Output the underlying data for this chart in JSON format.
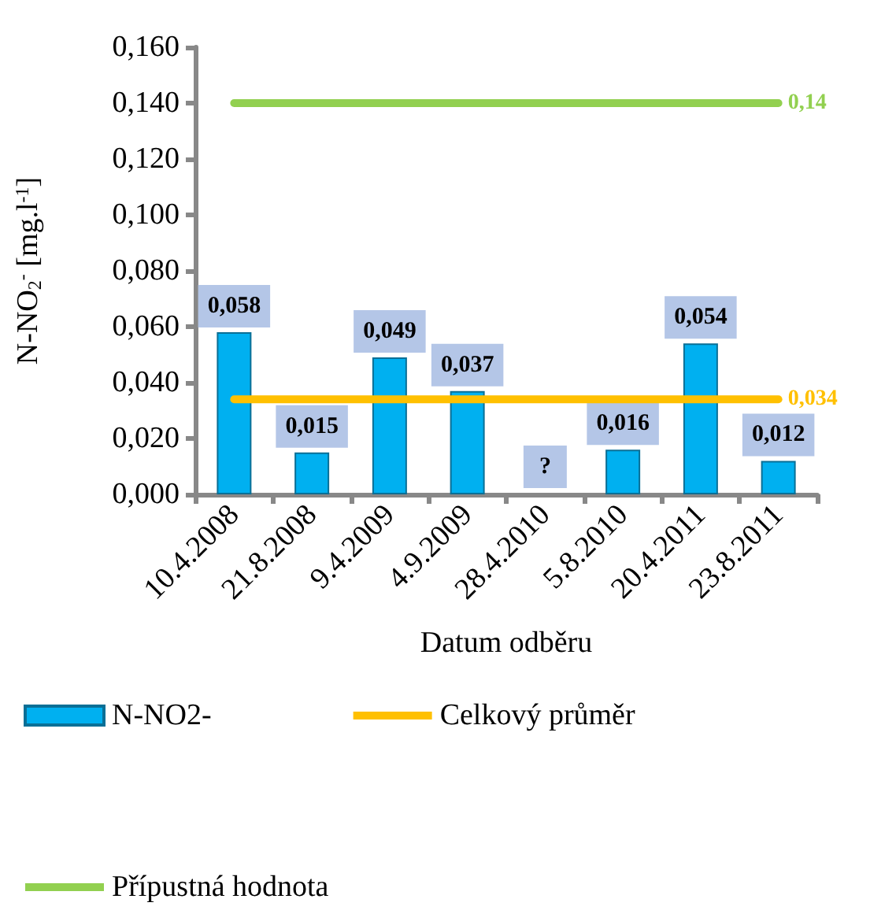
{
  "chart_data": {
    "type": "bar",
    "xlabel": "Datum odběru",
    "ylabel": "N-NO$_{2}$$^{-}$ [mg.l$^{-1}$]",
    "categories": [
      "10.4.2008",
      "21.8.2008",
      "9.4.2009",
      "4.9.2009",
      "28.4.2010",
      "5.8.2010",
      "20.4.2011",
      "23.8.2011"
    ],
    "series": [
      {
        "name": "N-NO2-",
        "color": "#00b0f0",
        "values": [
          0.058,
          0.015,
          0.049,
          0.037,
          null,
          0.016,
          0.054,
          0.012
        ],
        "value_labels": [
          "0,058",
          "0,015",
          "0,049",
          "0,037",
          "?",
          "0,016",
          "0,054",
          "0,012"
        ]
      },
      {
        "name": "Celkový průměr",
        "type": "line",
        "color": "#ffc000",
        "values": [
          0.034,
          0.034,
          0.034,
          0.034,
          0.034,
          0.034,
          0.034,
          0.034
        ],
        "value_labels": [
          null,
          null,
          null,
          null,
          null,
          null,
          null,
          "0,034"
        ]
      },
      {
        "name": "Přípustná hodnota",
        "type": "line",
        "color": "#92d050",
        "values": [
          0.14,
          0.14,
          0.14,
          0.14,
          0.14,
          0.14,
          0.14,
          0.14
        ],
        "value_labels": [
          null,
          null,
          null,
          null,
          null,
          null,
          null,
          "0,14"
        ]
      }
    ],
    "ylim": [
      0,
      0.16
    ],
    "yticks": [
      {
        "value": 0,
        "label": "0,000"
      },
      {
        "value": 0.02,
        "label": "0,020"
      },
      {
        "value": 0.04,
        "label": "0,040"
      },
      {
        "value": 0.06,
        "label": "0,060"
      },
      {
        "value": 0.08,
        "label": "0,080"
      },
      {
        "value": 0.1,
        "label": "0,100"
      },
      {
        "value": 0.12,
        "label": "0,120"
      },
      {
        "value": 0.14,
        "label": "0,140"
      },
      {
        "value": 0.16,
        "label": "0,160"
      }
    ],
    "grid": false,
    "legend": "bottom",
    "marker": "none",
    "line_style": "solid"
  }
}
